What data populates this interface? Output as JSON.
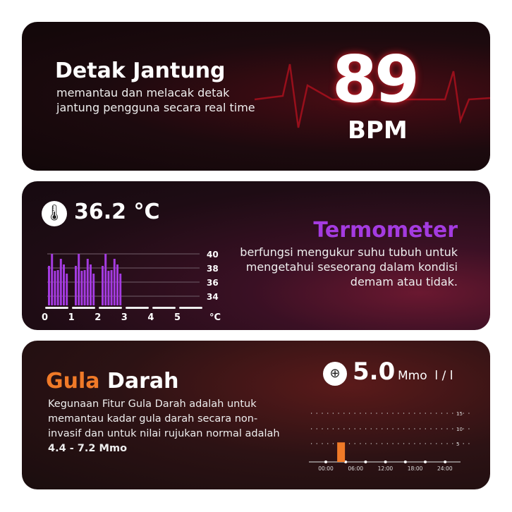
{
  "heart": {
    "title": "Detak Jantung",
    "desc": "memantau dan melacak detak jantung pengguna secara real time",
    "value": "89",
    "unit": "BPM",
    "accent": "#d0182a"
  },
  "thermo": {
    "value": "36.2",
    "unit": "°C",
    "title": "Termometer",
    "desc": "berfungsi mengukur suhu tubuh untuk mengetahui seseorang dalam kondisi demam atau tidak.",
    "accent": "#a43be0",
    "chart_data": {
      "type": "bar",
      "y_ticks": [
        "40",
        "38",
        "36",
        "34"
      ],
      "x_ticks": [
        "0",
        "1",
        "2",
        "3",
        "4",
        "5"
      ],
      "x_unit": "°C",
      "ylim": [
        32.7,
        40
      ],
      "values": [
        38.3,
        40,
        37.6,
        37.7,
        39.3,
        38.5,
        37.2,
        38.3,
        40,
        37.6,
        37.7,
        39.3,
        38.5,
        37.2,
        38.3,
        40,
        37.6,
        37.7,
        39.3,
        38.5,
        37.2
      ]
    }
  },
  "gula": {
    "title_a": "Gula",
    "title_b": "Darah",
    "desc": "Kegunaan Fitur Gula Darah adalah untuk memantau kadar gula darah secara non-invasif dan untuk nilai rujukan normal adalah ",
    "range": "4.4 - 7.2 Mmo",
    "value": "5.0",
    "unit": "Mmo  l / l",
    "accent": "#f07a28",
    "chart_data": {
      "type": "bar",
      "y_ticks": [
        "15",
        "10",
        "5"
      ],
      "x_ticks": [
        "00:00",
        "06:00",
        "12:00",
        "18:00",
        "24:00"
      ],
      "ylim": [
        0,
        15
      ],
      "bars": [
        {
          "x": "03:00",
          "value": 5.4
        }
      ]
    }
  }
}
